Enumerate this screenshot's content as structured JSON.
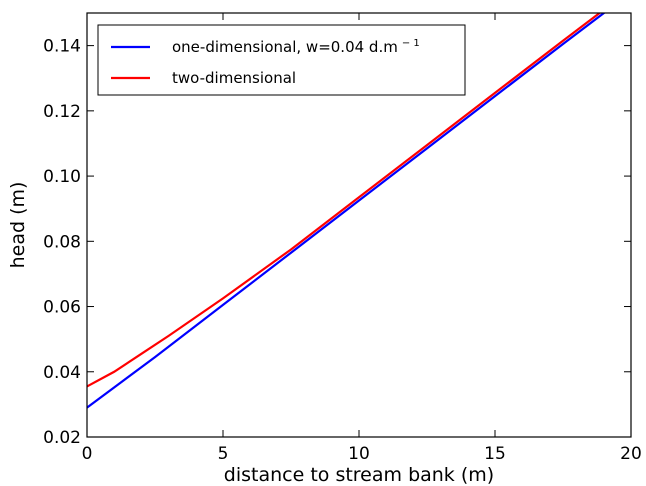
{
  "chart_data": {
    "type": "line",
    "xlabel": "distance to stream bank (m)",
    "ylabel": "head (m)",
    "xlim": [
      0,
      20
    ],
    "ylim": [
      0.02,
      0.15
    ],
    "xticks": [
      0,
      5,
      10,
      15,
      20
    ],
    "yticks": [
      0.02,
      0.04,
      0.06,
      0.08,
      0.1,
      0.12,
      0.14
    ],
    "xtick_labels": [
      "0",
      "5",
      "10",
      "15",
      "20"
    ],
    "ytick_labels": [
      "0.02",
      "0.04",
      "0.06",
      "0.08",
      "0.10",
      "0.12",
      "0.14"
    ],
    "grid": false,
    "legend_position": "top-left",
    "series": [
      {
        "name": "one-dimensional, w=0.04 d.m",
        "name_sup": "− 1",
        "color": "#0000ff",
        "x": [
          0,
          2.5,
          5,
          7.5,
          10,
          12.5,
          15,
          17.5,
          19.4
        ],
        "y": [
          0.029,
          0.0445,
          0.0605,
          0.0765,
          0.0925,
          0.1085,
          0.1245,
          0.1405,
          0.1525
        ]
      },
      {
        "name": "two-dimensional",
        "color": "#ff0000",
        "x": [
          0,
          1,
          2,
          3,
          5,
          7.5,
          10,
          12.5,
          15,
          17.5,
          19.4
        ],
        "y": [
          0.0355,
          0.04,
          0.0455,
          0.051,
          0.0625,
          0.0775,
          0.0935,
          0.1095,
          0.1255,
          0.1415,
          0.1535
        ]
      }
    ]
  }
}
